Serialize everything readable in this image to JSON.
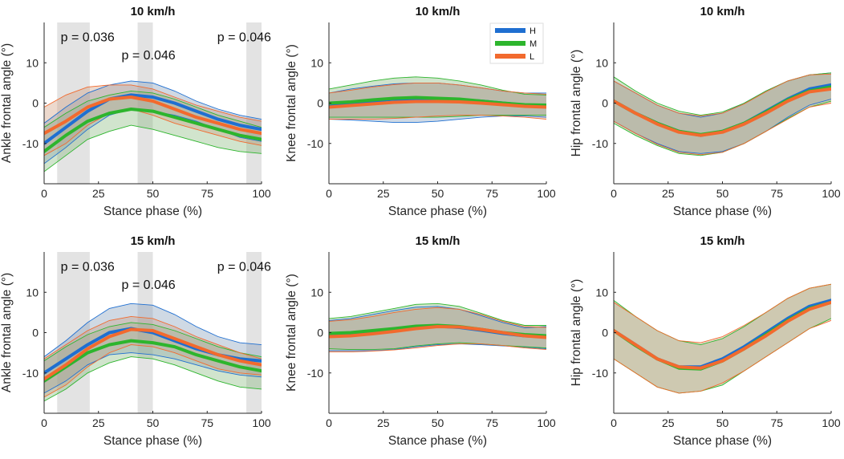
{
  "colors": {
    "H": "#1f6fd1",
    "M": "#2db52d",
    "L": "#f26a2e",
    "sig_shade": "#e3e3e3",
    "axis": "#262626",
    "overlap_fill": "#b7b3a4"
  },
  "legend": {
    "entries": [
      "H",
      "M",
      "L"
    ]
  },
  "chart_data": [
    {
      "type": "line",
      "title": "10 km/h",
      "xlabel": "Stance phase (%)",
      "ylabel": "Ankle frontal angle (°)",
      "xlim": [
        0,
        100
      ],
      "ylim": [
        -20,
        20
      ],
      "xticks": [
        0,
        25,
        50,
        75,
        100
      ],
      "yticks": [
        -10,
        0,
        10
      ],
      "sig_regions": [
        [
          6,
          21
        ],
        [
          43,
          50
        ],
        [
          93,
          100
        ]
      ],
      "annotations": [
        {
          "text": "p = 0.036",
          "x": 20,
          "y": 16.5
        },
        {
          "text": "p = 0.046",
          "x": 48,
          "y": 12
        },
        {
          "text": "p = 0.046",
          "x": 92,
          "y": 16.5
        }
      ],
      "series": [
        {
          "name": "H",
          "x": [
            0,
            10,
            20,
            30,
            40,
            50,
            60,
            70,
            80,
            90,
            100
          ],
          "mean": [
            -10,
            -6,
            -2,
            1,
            2,
            1.5,
            0,
            -2,
            -4,
            -5.5,
            -6.5
          ],
          "upper": [
            -5,
            -1,
            2.5,
            4.5,
            5.5,
            5,
            3,
            0.5,
            -1.5,
            -3,
            -4
          ],
          "lower": [
            -15,
            -11,
            -6.5,
            -3,
            -1.5,
            -2,
            -3,
            -4.5,
            -6.5,
            -8.5,
            -9.5
          ]
        },
        {
          "name": "M",
          "x": [
            0,
            10,
            20,
            30,
            40,
            50,
            60,
            70,
            80,
            90,
            100
          ],
          "mean": [
            -12,
            -8,
            -4.5,
            -2.5,
            -1.5,
            -2,
            -3.5,
            -5,
            -6.5,
            -8,
            -9
          ],
          "upper": [
            -6,
            -2.5,
            0.5,
            2,
            3,
            2.5,
            1,
            -1,
            -3,
            -4.5,
            -6
          ],
          "lower": [
            -17,
            -13,
            -9,
            -7,
            -5.5,
            -6.5,
            -8,
            -9.5,
            -11,
            -12,
            -12.5
          ]
        },
        {
          "name": "L",
          "x": [
            0,
            10,
            20,
            30,
            40,
            50,
            60,
            70,
            80,
            90,
            100
          ],
          "mean": [
            -7.5,
            -4.5,
            -1,
            1,
            1.5,
            0.5,
            -1.5,
            -3.5,
            -5,
            -6.5,
            -7.5
          ],
          "upper": [
            -1,
            2,
            4,
            4.5,
            4.5,
            3.5,
            1.5,
            -0.5,
            -2,
            -3.5,
            -4.5
          ],
          "lower": [
            -13,
            -10,
            -5.5,
            -2.5,
            -1.5,
            -3,
            -5,
            -6.5,
            -8,
            -9.5,
            -10.5
          ]
        }
      ]
    },
    {
      "type": "line",
      "title": "10 km/h",
      "xlabel": "Stance phase (%)",
      "ylabel": "Knee frontal angle (°)",
      "xlim": [
        0,
        100
      ],
      "ylim": [
        -20,
        20
      ],
      "xticks": [
        0,
        25,
        50,
        75,
        100
      ],
      "yticks": [
        -10,
        0,
        10
      ],
      "sig_regions": [],
      "annotations": [],
      "series": [
        {
          "name": "H",
          "x": [
            0,
            10,
            20,
            30,
            40,
            50,
            60,
            70,
            80,
            90,
            100
          ],
          "mean": [
            -0.5,
            0,
            0.5,
            1,
            1,
            1,
            0.8,
            0.5,
            0,
            -0.5,
            -0.5
          ],
          "upper": [
            2.5,
            3.5,
            4.2,
            4.8,
            5,
            5,
            4.5,
            3.8,
            3,
            2.5,
            2.5
          ],
          "lower": [
            -4,
            -4.2,
            -4.5,
            -4.8,
            -4.8,
            -4.5,
            -4,
            -3.5,
            -3.2,
            -3.2,
            -3.5
          ]
        },
        {
          "name": "M",
          "x": [
            0,
            10,
            20,
            30,
            40,
            50,
            60,
            70,
            80,
            90,
            100
          ],
          "mean": [
            0,
            0.3,
            0.8,
            1.2,
            1.4,
            1.2,
            1,
            0.5,
            0,
            -0.4,
            -0.5
          ],
          "upper": [
            3.5,
            4.5,
            5.5,
            6.2,
            6.5,
            6.2,
            5.5,
            4.5,
            3.2,
            2.2,
            2
          ],
          "lower": [
            -3.5,
            -3.5,
            -3.5,
            -3.5,
            -3.5,
            -3.5,
            -3.3,
            -3,
            -3,
            -3,
            -3
          ]
        },
        {
          "name": "L",
          "x": [
            0,
            10,
            20,
            30,
            40,
            50,
            60,
            70,
            80,
            90,
            100
          ],
          "mean": [
            -1,
            -0.6,
            -0.2,
            0.2,
            0.4,
            0.4,
            0.3,
            0,
            -0.4,
            -0.8,
            -1
          ],
          "upper": [
            2.5,
            3.2,
            4,
            4.6,
            5,
            5,
            4.5,
            3.8,
            3,
            2.5,
            2.2
          ],
          "lower": [
            -4,
            -4,
            -4,
            -3.8,
            -3.5,
            -3.2,
            -3,
            -3,
            -3.2,
            -3.5,
            -4
          ]
        }
      ]
    },
    {
      "type": "line",
      "title": "10 km/h",
      "xlabel": "Stance phase (%)",
      "ylabel": "Hip frontal angle (°)",
      "xlim": [
        0,
        100
      ],
      "ylim": [
        -20,
        20
      ],
      "xticks": [
        0,
        25,
        50,
        75,
        100
      ],
      "yticks": [
        -10,
        0,
        10
      ],
      "sig_regions": [],
      "annotations": [],
      "series": [
        {
          "name": "H",
          "x": [
            0,
            10,
            20,
            30,
            40,
            50,
            60,
            70,
            80,
            90,
            100
          ],
          "mean": [
            0.5,
            -2.5,
            -5,
            -7,
            -8,
            -7,
            -5,
            -2,
            1,
            3.5,
            4.5
          ],
          "upper": [
            5.5,
            2.5,
            -0.5,
            -2.5,
            -3.5,
            -2.5,
            0,
            3,
            5.5,
            7,
            7.5
          ],
          "lower": [
            -4.5,
            -7.5,
            -10,
            -12,
            -12.5,
            -12,
            -10,
            -7,
            -3.5,
            -0.5,
            1
          ]
        },
        {
          "name": "M",
          "x": [
            0,
            10,
            20,
            30,
            40,
            50,
            60,
            70,
            80,
            90,
            100
          ],
          "mean": [
            0.5,
            -2.5,
            -5,
            -7,
            -7.8,
            -7,
            -5,
            -2.2,
            0.8,
            3,
            4
          ],
          "upper": [
            6.5,
            3,
            0,
            -2,
            -3,
            -2.2,
            0,
            3,
            5.5,
            7,
            7.5
          ],
          "lower": [
            -5,
            -8,
            -10.5,
            -12.5,
            -13,
            -12.2,
            -10,
            -7,
            -3.8,
            -1,
            0.5
          ]
        },
        {
          "name": "L",
          "x": [
            0,
            10,
            20,
            30,
            40,
            50,
            60,
            70,
            80,
            90,
            100
          ],
          "mean": [
            0.5,
            -2.5,
            -5.2,
            -7.2,
            -8,
            -7.2,
            -5.2,
            -2.5,
            0.5,
            2.8,
            3.5
          ],
          "upper": [
            5.5,
            2.5,
            -0.5,
            -2.5,
            -3.2,
            -2.5,
            -0.2,
            2.8,
            5.5,
            7,
            7.2
          ],
          "lower": [
            -4.5,
            -7.5,
            -10.2,
            -12.2,
            -12.8,
            -12.2,
            -10,
            -7,
            -4,
            -1,
            0
          ]
        }
      ]
    },
    {
      "type": "line",
      "title": "15 km/h",
      "xlabel": "Stance phase (%)",
      "ylabel": "Ankle frontal angle (°)",
      "xlim": [
        0,
        100
      ],
      "ylim": [
        -20,
        20
      ],
      "xticks": [
        0,
        25,
        50,
        75,
        100
      ],
      "yticks": [
        -10,
        0,
        10
      ],
      "sig_regions": [
        [
          6,
          21
        ],
        [
          43,
          50
        ],
        [
          93,
          100
        ]
      ],
      "annotations": [
        {
          "text": "p = 0.036",
          "x": 20,
          "y": 16.5
        },
        {
          "text": "p = 0.046",
          "x": 48,
          "y": 12
        },
        {
          "text": "p = 0.046",
          "x": 92,
          "y": 16.5
        }
      ],
      "series": [
        {
          "name": "H",
          "x": [
            0,
            10,
            20,
            30,
            40,
            50,
            60,
            70,
            80,
            90,
            100
          ],
          "mean": [
            -10,
            -6.5,
            -3,
            0,
            1,
            0,
            -2,
            -4,
            -5.5,
            -6.5,
            -7
          ],
          "upper": [
            -6,
            -2,
            2.5,
            6,
            7.2,
            6.8,
            4.5,
            1.5,
            -1,
            -2.5,
            -3
          ],
          "lower": [
            -15,
            -12,
            -8,
            -5.5,
            -5,
            -5.5,
            -6.5,
            -8,
            -9.5,
            -10.5,
            -11
          ]
        },
        {
          "name": "M",
          "x": [
            0,
            10,
            20,
            30,
            40,
            50,
            60,
            70,
            80,
            90,
            100
          ],
          "mean": [
            -12,
            -8.5,
            -5,
            -3,
            -2,
            -2.5,
            -3.5,
            -5.5,
            -7,
            -8.5,
            -9.5
          ],
          "upper": [
            -7,
            -3.5,
            -0.5,
            1.5,
            2.5,
            2,
            0.5,
            -1.5,
            -3.5,
            -5,
            -6
          ],
          "lower": [
            -17,
            -14,
            -10,
            -7.5,
            -6,
            -6.5,
            -8,
            -10,
            -12,
            -13.5,
            -14
          ]
        },
        {
          "name": "L",
          "x": [
            0,
            10,
            20,
            30,
            40,
            50,
            60,
            70,
            80,
            90,
            100
          ],
          "mean": [
            -11.5,
            -8,
            -4,
            -1,
            0.8,
            0.5,
            -1.5,
            -3.5,
            -5.5,
            -7,
            -8
          ],
          "upper": [
            -6.5,
            -3,
            0.5,
            3,
            4,
            3.5,
            1.5,
            -1,
            -3,
            -5,
            -6.5
          ],
          "lower": [
            -16,
            -13,
            -8.5,
            -5,
            -3,
            -3.5,
            -5,
            -7,
            -9,
            -10,
            -10.5
          ]
        }
      ]
    },
    {
      "type": "line",
      "title": "15 km/h",
      "xlabel": "Stance phase (%)",
      "ylabel": "Knee frontal angle (°)",
      "xlim": [
        0,
        100
      ],
      "ylim": [
        -20,
        20
      ],
      "xticks": [
        0,
        25,
        50,
        75,
        100
      ],
      "yticks": [
        -10,
        0,
        10
      ],
      "sig_regions": [],
      "annotations": [],
      "series": [
        {
          "name": "H",
          "x": [
            0,
            10,
            20,
            30,
            40,
            50,
            60,
            70,
            80,
            90,
            100
          ],
          "mean": [
            -0.5,
            -0.3,
            0.2,
            0.8,
            1.4,
            1.6,
            1.3,
            0.6,
            -0.2,
            -0.8,
            -1
          ],
          "upper": [
            3,
            3.5,
            4.5,
            5.5,
            6.3,
            6.5,
            5.8,
            4.2,
            2.5,
            1.2,
            1.5
          ],
          "lower": [
            -4.5,
            -4.5,
            -4.5,
            -4.2,
            -3.5,
            -3,
            -2.8,
            -3,
            -3.3,
            -3.6,
            -4
          ]
        },
        {
          "name": "M",
          "x": [
            0,
            10,
            20,
            30,
            40,
            50,
            60,
            70,
            80,
            90,
            100
          ],
          "mean": [
            -0.2,
            0,
            0.5,
            1,
            1.6,
            1.8,
            1.5,
            0.8,
            0,
            -0.5,
            -0.8
          ],
          "upper": [
            3.5,
            4,
            5,
            6,
            7,
            7.2,
            6.5,
            4.8,
            3,
            1.8,
            1.8
          ],
          "lower": [
            -4,
            -4.2,
            -4.2,
            -4,
            -3.3,
            -2.8,
            -2.5,
            -2.8,
            -3.2,
            -3.5,
            -3.8
          ]
        },
        {
          "name": "L",
          "x": [
            0,
            10,
            20,
            30,
            40,
            50,
            60,
            70,
            80,
            90,
            100
          ],
          "mean": [
            -1,
            -0.8,
            -0.3,
            0.3,
            1,
            1.5,
            1.4,
            0.8,
            0,
            -0.8,
            -1.2
          ],
          "upper": [
            2.8,
            3.2,
            4,
            5,
            5.8,
            6.2,
            5.8,
            4.5,
            2.8,
            1.5,
            1.3
          ],
          "lower": [
            -4.8,
            -4.8,
            -4.6,
            -4.3,
            -3.8,
            -3.2,
            -2.8,
            -2.8,
            -3.2,
            -3.8,
            -4.2
          ]
        }
      ]
    },
    {
      "type": "line",
      "title": "15 km/h",
      "xlabel": "Stance phase (%)",
      "ylabel": "Hip frontal angle (°)",
      "xlim": [
        0,
        100
      ],
      "ylim": [
        -20,
        20
      ],
      "xticks": [
        0,
        25,
        50,
        75,
        100
      ],
      "yticks": [
        -10,
        0,
        10
      ],
      "sig_regions": [],
      "annotations": [],
      "series": [
        {
          "name": "H",
          "x": [
            0,
            10,
            20,
            30,
            40,
            50,
            60,
            70,
            80,
            90,
            100
          ],
          "mean": [
            0.5,
            -3,
            -6.5,
            -8.5,
            -8.5,
            -6.5,
            -3.5,
            0,
            3.5,
            6.5,
            8
          ]
        },
        {
          "name": "M",
          "x": [
            0,
            10,
            20,
            30,
            40,
            50,
            60,
            70,
            80,
            90,
            100
          ],
          "mean": [
            0.5,
            -3.2,
            -6.5,
            -8.8,
            -9,
            -7,
            -4,
            -0.5,
            3,
            6,
            7.5
          ],
          "upper": [
            8,
            4,
            0.5,
            -2,
            -3,
            -1.5,
            1.5,
            5,
            8.5,
            11,
            12
          ],
          "lower": [
            -6.5,
            -10,
            -13.5,
            -15,
            -14.5,
            -13,
            -9.5,
            -6,
            -2.5,
            1,
            3.5
          ]
        },
        {
          "name": "L",
          "x": [
            0,
            10,
            20,
            30,
            40,
            50,
            60,
            70,
            80,
            90,
            100
          ],
          "mean": [
            0.5,
            -3,
            -6.5,
            -8.5,
            -8.8,
            -7,
            -4,
            -0.8,
            2.8,
            5.8,
            7.5
          ],
          "upper": [
            7.5,
            4,
            0.5,
            -2,
            -2.5,
            -1,
            1.8,
            5,
            8.5,
            11,
            12
          ],
          "lower": [
            -6.5,
            -10,
            -13.5,
            -15,
            -14.5,
            -12.5,
            -9.5,
            -6,
            -2.5,
            1,
            3
          ]
        }
      ]
    }
  ]
}
